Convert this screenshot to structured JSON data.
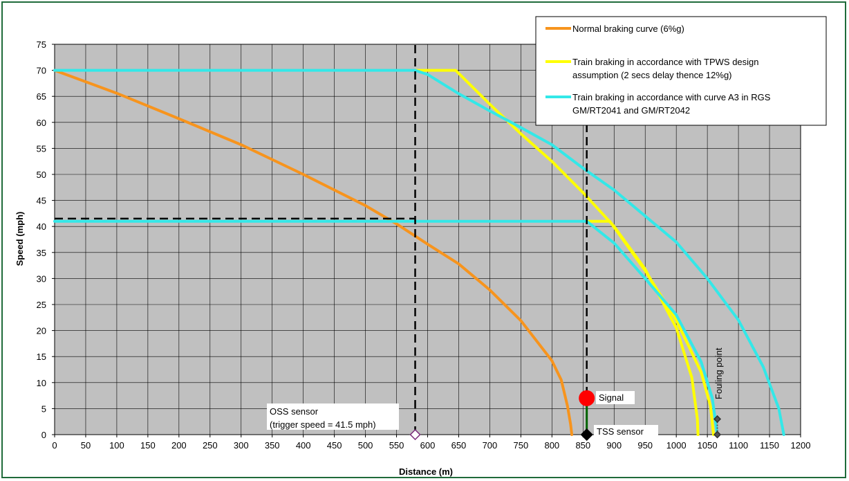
{
  "chart_data": {
    "type": "line",
    "xlabel": "Distance (m)",
    "ylabel": "Speed  (mph)",
    "xlim": [
      0,
      1200
    ],
    "ylim": [
      0,
      75
    ],
    "xticks": [
      0,
      50,
      100,
      150,
      200,
      250,
      300,
      350,
      400,
      450,
      500,
      550,
      600,
      650,
      700,
      750,
      800,
      850,
      900,
      950,
      1000,
      1050,
      1100,
      1150,
      1200
    ],
    "yticks": [
      0,
      5,
      10,
      15,
      20,
      25,
      30,
      35,
      40,
      45,
      50,
      55,
      60,
      65,
      70,
      75
    ],
    "grid": true,
    "legend_position": "top-right",
    "series": [
      {
        "name": "Normal  braking curve (6%g)",
        "color": "#f7941d",
        "points": [
          [
            0,
            70
          ],
          [
            100,
            65.6
          ],
          [
            200,
            60.7
          ],
          [
            300,
            55.7
          ],
          [
            400,
            50
          ],
          [
            500,
            44
          ],
          [
            550,
            40.5
          ],
          [
            600,
            36.6
          ],
          [
            650,
            32.8
          ],
          [
            700,
            27.8
          ],
          [
            750,
            21.9
          ],
          [
            800,
            14.2
          ],
          [
            815,
            10.5
          ],
          [
            825,
            5.5
          ],
          [
            830,
            2
          ],
          [
            832,
            0
          ]
        ]
      },
      {
        "name": "Train braking in accordance with TPWS design assumption (2 secs delay thence 12%g)",
        "color": "#ffff00",
        "points": [
          [
            580,
            70
          ],
          [
            645,
            70
          ],
          [
            700,
            63.5
          ],
          [
            750,
            57.8
          ],
          [
            800,
            52.5
          ],
          [
            850,
            46.5
          ],
          [
            900,
            40
          ],
          [
            950,
            31.8
          ],
          [
            1000,
            20.5
          ],
          [
            1025,
            11
          ],
          [
            1034,
            3
          ],
          [
            1035,
            0
          ]
        ]
      },
      {
        "name": "Train braking in accordance with TPWS design assumption (2 secs delay thence 12%g)",
        "color": "#ffff00",
        "points": [
          [
            856,
            41
          ],
          [
            893,
            41
          ],
          [
            950,
            31.5
          ],
          [
            1000,
            22
          ],
          [
            1040,
            12
          ],
          [
            1055,
            5.5
          ],
          [
            1060,
            0
          ]
        ]
      },
      {
        "name": "Train braking in accordance with curve A3 in RGS GM/RT2041 and GM/RT2042",
        "color": "#33e8e8",
        "points": [
          [
            0,
            70
          ],
          [
            580,
            70
          ],
          [
            600,
            69.2
          ],
          [
            650,
            65.5
          ],
          [
            700,
            62.2
          ],
          [
            750,
            59
          ],
          [
            800,
            55.7
          ],
          [
            850,
            51.2
          ],
          [
            900,
            47
          ],
          [
            950,
            42
          ],
          [
            1000,
            37
          ],
          [
            1050,
            30
          ],
          [
            1100,
            22
          ],
          [
            1140,
            13
          ],
          [
            1165,
            5
          ],
          [
            1173,
            0
          ]
        ]
      },
      {
        "name": "Train braking in accordance with curve A3 in RGS GM/RT2041 and GM/RT2042",
        "color": "#33e8e8",
        "points": [
          [
            0,
            41
          ],
          [
            856,
            41
          ],
          [
            900,
            36.8
          ],
          [
            950,
            30
          ],
          [
            1000,
            23
          ],
          [
            1040,
            14
          ],
          [
            1058,
            7
          ],
          [
            1066,
            0
          ]
        ]
      }
    ],
    "reference_lines": [
      {
        "kind": "vertical",
        "x": 580,
        "y_from": 0,
        "y_to": 75
      },
      {
        "kind": "vertical",
        "x": 856,
        "y_from": 0,
        "y_to": 66.5
      },
      {
        "kind": "horizontal",
        "y": 41.5,
        "x_from": 0,
        "x_to": 580
      }
    ],
    "markers": [
      {
        "shape": "diamond",
        "x": 580,
        "y": 0,
        "fill": "#ffffff",
        "stroke": "#7a2a7a"
      },
      {
        "shape": "diamond",
        "x": 856,
        "y": 0,
        "fill": "#000000",
        "stroke": "#000000"
      },
      {
        "shape": "circle",
        "x": 856,
        "y": 7,
        "fill": "#ff0000",
        "stroke": "#ff0000"
      },
      {
        "shape": "diamond",
        "x": 1066,
        "y": 0,
        "fill": "#555555",
        "stroke": "#333333"
      },
      {
        "shape": "diamond",
        "x": 1066,
        "y": 3,
        "fill": "#555555",
        "stroke": "#333333"
      }
    ],
    "annotations": {
      "oss_line1": "OSS sensor",
      "oss_line2": "(trigger speed = 41.5 mph)",
      "signal": "Signal",
      "tss": "TSS sensor",
      "fouling": "Fouling point"
    },
    "legend": [
      {
        "lines": [
          "Normal  braking curve (6%g)"
        ],
        "color": "#f7941d"
      },
      {
        "lines": [
          "Train braking in accordance with TPWS design",
          "assumption (2 secs delay thence 12%g)"
        ],
        "color": "#ffff00"
      },
      {
        "lines": [
          "Train braking in accordance with curve A3 in RGS",
          "GM/RT2041 and GM/RT2042"
        ],
        "color": "#33e8e8"
      }
    ],
    "colors": {
      "plot_bg": "#c0c0c0",
      "grid": "#000000",
      "frame": "#1f6b3a"
    }
  }
}
